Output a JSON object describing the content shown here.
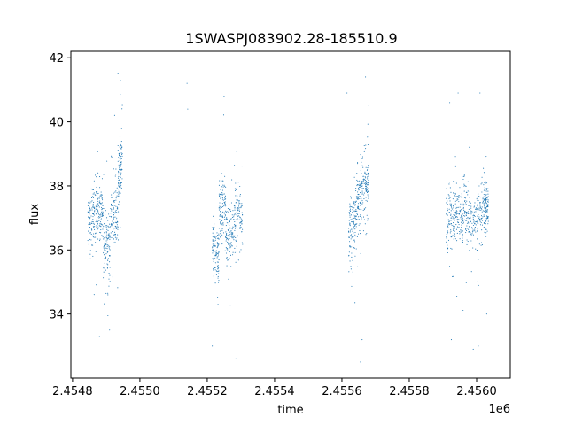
{
  "chart_data": {
    "type": "scatter",
    "title": "1SWASPJ083902.28-185510.9",
    "xlabel": "time",
    "ylabel": "flux",
    "x_offset_label": "1e6",
    "xlim": [
      2454795,
      2456100
    ],
    "ylim": [
      32.0,
      42.2
    ],
    "x_ticks": [
      2454800,
      2455000,
      2455200,
      2455400,
      2455600,
      2455800,
      2456000
    ],
    "x_tick_labels": [
      "2.4548",
      "2.4550",
      "2.4552",
      "2.4554",
      "2.4556",
      "2.4558",
      "2.4560"
    ],
    "y_ticks": [
      34,
      36,
      38,
      40,
      42
    ],
    "y_tick_labels": [
      "34",
      "36",
      "38",
      "40",
      "42"
    ],
    "grid": false,
    "legend": "none",
    "marker_color": "#1f77b4",
    "series": [
      {
        "segments": [
          {
            "x": [
              2454845,
              2454870
            ],
            "y": [
              36.8,
              37.1
            ]
          },
          {
            "x": [
              2454870,
              2454890
            ],
            "y": [
              37.3,
              37.2
            ]
          },
          {
            "x": [
              2454890,
              2454912
            ],
            "y": [
              36.3,
              36.0
            ]
          },
          {
            "x": [
              2454912,
              2454935
            ],
            "y": [
              37.1,
              36.8
            ]
          },
          {
            "x": [
              2454935,
              2454948
            ],
            "y": [
              38.3,
              38.8
            ]
          },
          {
            "x": [
              2455215,
              2455235
            ],
            "y": [
              36.2,
              35.7
            ]
          },
          {
            "x": [
              2455235,
              2455255
            ],
            "y": [
              37.2,
              37.5
            ]
          },
          {
            "x": [
              2455255,
              2455280
            ],
            "y": [
              36.3,
              36.6
            ]
          },
          {
            "x": [
              2455280,
              2455305
            ],
            "y": [
              37.2,
              36.9
            ]
          },
          {
            "x": [
              2455620,
              2455640
            ],
            "y": [
              36.6,
              36.8
            ]
          },
          {
            "x": [
              2455640,
              2455660
            ],
            "y": [
              37.3,
              37.7
            ]
          },
          {
            "x": [
              2455660,
              2455680
            ],
            "y": [
              37.8,
              38.1
            ]
          },
          {
            "x": [
              2455910,
              2455935
            ],
            "y": [
              36.9,
              37.0
            ]
          },
          {
            "x": [
              2455935,
              2455960
            ],
            "y": [
              37.2,
              36.9
            ]
          },
          {
            "x": [
              2455960,
              2455990
            ],
            "y": [
              37.5,
              36.6
            ]
          },
          {
            "x": [
              2455990,
              2456020
            ],
            "y": [
              36.9,
              37.4
            ]
          },
          {
            "x": [
              2456020,
              2456035
            ],
            "y": [
              37.6,
              37.2
            ]
          }
        ],
        "outliers": [
          {
            "x": 2454905,
            "y": 34.6
          },
          {
            "x": 2454910,
            "y": 33.5
          },
          {
            "x": 2454925,
            "y": 40.2
          },
          {
            "x": 2454935,
            "y": 41.5
          },
          {
            "x": 2454942,
            "y": 41.3
          },
          {
            "x": 2454880,
            "y": 33.3
          },
          {
            "x": 2455140,
            "y": 41.2
          },
          {
            "x": 2455142,
            "y": 40.4
          },
          {
            "x": 2455232,
            "y": 34.3
          },
          {
            "x": 2455250,
            "y": 40.8
          },
          {
            "x": 2455285,
            "y": 32.6
          },
          {
            "x": 2455215,
            "y": 33.0
          },
          {
            "x": 2455655,
            "y": 32.5
          },
          {
            "x": 2455660,
            "y": 33.2
          },
          {
            "x": 2455615,
            "y": 40.9
          },
          {
            "x": 2455670,
            "y": 41.4
          },
          {
            "x": 2455680,
            "y": 40.5
          },
          {
            "x": 2455925,
            "y": 33.2
          },
          {
            "x": 2455945,
            "y": 40.9
          },
          {
            "x": 2455920,
            "y": 40.6
          },
          {
            "x": 2455990,
            "y": 32.9
          },
          {
            "x": 2456010,
            "y": 40.9
          },
          {
            "x": 2456030,
            "y": 34.0
          },
          {
            "x": 2456005,
            "y": 33.0
          }
        ]
      }
    ]
  }
}
